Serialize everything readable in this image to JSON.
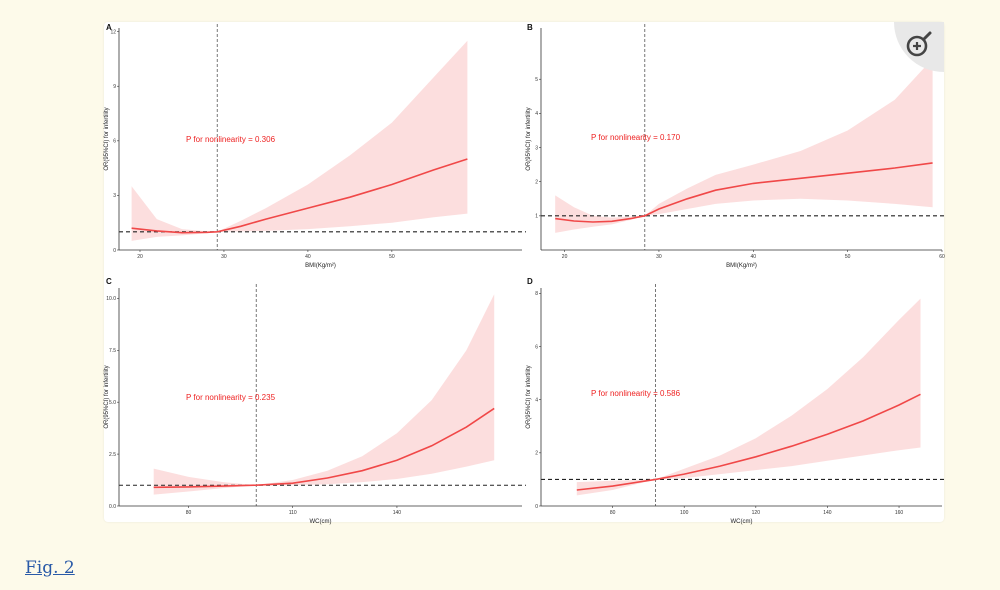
{
  "figure_link": "Fig. 2",
  "zoom_icon": "zoom-in-icon",
  "colors": {
    "page_bg": "#fdfaea",
    "curve": "#f04848",
    "band": "#fbd8d8",
    "link": "#2a5aa8"
  },
  "chart_data": [
    {
      "panel": "A",
      "type": "line",
      "xlabel": "BMI(Kg/m²)",
      "ylabel": "OR(95%CI) for infertility",
      "xlim": [
        17.5,
        65.5
      ],
      "ylim": [
        0,
        12.2
      ],
      "xticks": [
        20,
        30,
        40,
        50
      ],
      "yticks": [
        0,
        3,
        6,
        9,
        12
      ],
      "annotation": "P for nonlinearity = 0.306",
      "reference_x": 29.2,
      "reference_y": 1,
      "x": [
        19,
        22,
        25,
        28,
        29.2,
        32,
        35,
        40,
        45,
        50,
        55,
        59
      ],
      "y": [
        1.2,
        1.05,
        0.95,
        0.97,
        1.0,
        1.3,
        1.7,
        2.3,
        2.9,
        3.6,
        4.4,
        5.0
      ],
      "lower": [
        0.5,
        0.72,
        0.8,
        0.92,
        1.0,
        1.02,
        1.05,
        1.15,
        1.3,
        1.5,
        1.8,
        2.0
      ],
      "upper": [
        3.5,
        1.7,
        1.15,
        1.02,
        1.0,
        1.6,
        2.3,
        3.6,
        5.2,
        7.0,
        9.5,
        11.5
      ]
    },
    {
      "panel": "B",
      "type": "line",
      "xlabel": "BMI(Kg/m²)",
      "ylabel": "OR(95%CI) for infertility",
      "xlim": [
        17.5,
        60
      ],
      "ylim": [
        0,
        6.5
      ],
      "xticks": [
        20,
        30,
        40,
        50,
        60
      ],
      "yticks": [
        1,
        2,
        3,
        4,
        5
      ],
      "annotation": "P for nonlinearity = 0.170",
      "reference_x": 28.5,
      "reference_y": 1,
      "x": [
        19,
        21,
        23,
        25,
        27,
        28.5,
        30,
        33,
        36,
        40,
        45,
        50,
        55,
        59
      ],
      "y": [
        0.92,
        0.85,
        0.82,
        0.84,
        0.92,
        1.0,
        1.2,
        1.5,
        1.75,
        1.95,
        2.1,
        2.25,
        2.4,
        2.55
      ],
      "lower": [
        0.5,
        0.6,
        0.68,
        0.75,
        0.88,
        1.0,
        1.05,
        1.2,
        1.35,
        1.45,
        1.5,
        1.45,
        1.35,
        1.25
      ],
      "upper": [
        1.6,
        1.25,
        1.0,
        0.95,
        0.98,
        1.0,
        1.35,
        1.8,
        2.2,
        2.5,
        2.9,
        3.5,
        4.4,
        5.6
      ]
    },
    {
      "panel": "C",
      "type": "line",
      "xlabel": "WC(cm)",
      "ylabel": "OR(95%CI) for infertility",
      "xlim": [
        60,
        176
      ],
      "ylim": [
        0,
        10.5
      ],
      "xticks": [
        80,
        110,
        140
      ],
      "yticks": [
        0.0,
        2.5,
        5.0,
        7.5,
        10.0
      ],
      "ytick_labels": [
        "0.0",
        "2.5",
        "5.0",
        "7.5",
        "10.0"
      ],
      "annotation": "P for nonlinearity = 0.235",
      "reference_x": 99.5,
      "reference_y": 1,
      "x": [
        70,
        80,
        90,
        99.5,
        110,
        120,
        130,
        140,
        150,
        160,
        168
      ],
      "y": [
        0.9,
        0.92,
        0.96,
        1.0,
        1.1,
        1.35,
        1.7,
        2.2,
        2.9,
        3.8,
        4.7
      ],
      "lower": [
        0.55,
        0.7,
        0.86,
        1.0,
        1.0,
        1.05,
        1.15,
        1.3,
        1.55,
        1.9,
        2.2
      ],
      "upper": [
        1.8,
        1.4,
        1.15,
        1.0,
        1.25,
        1.7,
        2.4,
        3.5,
        5.1,
        7.5,
        10.2
      ]
    },
    {
      "panel": "D",
      "type": "line",
      "xlabel": "WC(cm)",
      "ylabel": "OR(95%CI) for infertility",
      "xlim": [
        60,
        172
      ],
      "ylim": [
        0,
        8.2
      ],
      "xticks": [
        80,
        100,
        120,
        140,
        160
      ],
      "yticks": [
        0,
        2,
        4,
        6,
        8
      ],
      "annotation": "P for nonlinearity = 0.586",
      "reference_x": 92,
      "reference_y": 1,
      "x": [
        70,
        80,
        92,
        100,
        110,
        120,
        130,
        140,
        150,
        160,
        166
      ],
      "y": [
        0.6,
        0.75,
        1.0,
        1.2,
        1.5,
        1.85,
        2.25,
        2.7,
        3.2,
        3.8,
        4.2
      ],
      "lower": [
        0.4,
        0.6,
        1.0,
        1.05,
        1.2,
        1.35,
        1.5,
        1.7,
        1.9,
        2.1,
        2.2
      ],
      "upper": [
        0.9,
        0.95,
        1.0,
        1.4,
        1.9,
        2.55,
        3.4,
        4.4,
        5.6,
        7.0,
        7.8
      ]
    }
  ]
}
